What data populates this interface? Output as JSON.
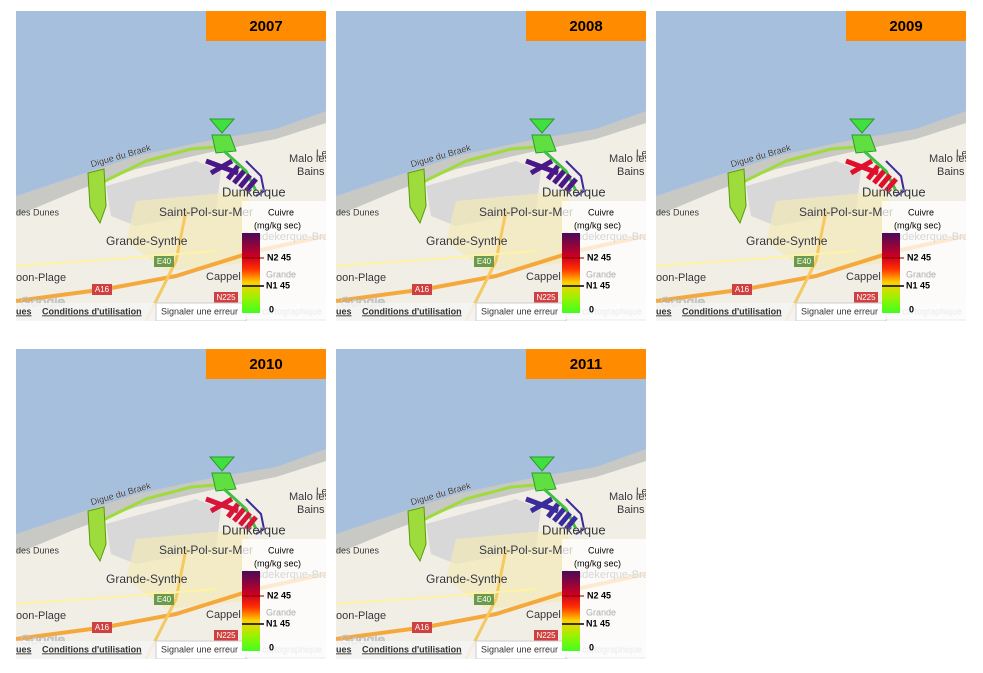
{
  "panels": [
    {
      "year": "2007",
      "color": "#4a1786"
    },
    {
      "year": "2008",
      "color": "#4a1786"
    },
    {
      "year": "2009",
      "color": "#e0102c"
    },
    {
      "year": "2010",
      "color": "#d8143a"
    },
    {
      "year": "2011",
      "color": "#3a2c9c"
    }
  ],
  "map_labels": {
    "digue": "Digue du Braek",
    "malo_1": "Malo les",
    "malo_2": "Bains",
    "le": "Le",
    "dunkerque": "Dunkerque",
    "dunes": "des Dunes",
    "saint_pol": "Saint-Pol-sur-Mer",
    "grande_synthe": "Grande-Synthe",
    "coudekerque": "Coudekerque-Bra",
    "loon": "oon-Plage",
    "cappelle": "Cappel",
    "e40": "E40",
    "a16": "A16",
    "n225": "N225",
    "google": "Google",
    "carto": "cartographique"
  },
  "legend": {
    "title": "Cuivre",
    "unit": "(mg/kg sec)",
    "n2": "N2 45",
    "grande": "Grande",
    "n1": "N1 45",
    "zero": "0"
  },
  "footer": {
    "ues": "ues",
    "conditions": "Conditions d'utilisation",
    "signaler": "Signaler une erreur"
  }
}
